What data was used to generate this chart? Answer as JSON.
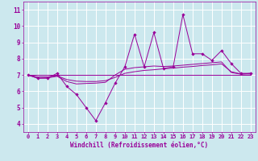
{
  "xlabel": "Windchill (Refroidissement éolien,°C)",
  "ylabel": "",
  "bg_color": "#cce8ee",
  "grid_color": "#ffffff",
  "line_color": "#990099",
  "xlim": [
    -0.5,
    23.5
  ],
  "ylim": [
    3.5,
    11.5
  ],
  "yticks": [
    4,
    5,
    6,
    7,
    8,
    9,
    10,
    11
  ],
  "xticks": [
    0,
    1,
    2,
    3,
    4,
    5,
    6,
    7,
    8,
    9,
    10,
    11,
    12,
    13,
    14,
    15,
    16,
    17,
    18,
    19,
    20,
    21,
    22,
    23
  ],
  "series1_x": [
    0,
    1,
    2,
    3,
    4,
    5,
    6,
    7,
    8,
    9,
    10,
    11,
    12,
    13,
    14,
    15,
    16,
    17,
    18,
    19,
    20,
    21,
    22,
    23
  ],
  "series1_y": [
    7.0,
    6.8,
    6.8,
    7.1,
    6.3,
    5.8,
    5.0,
    4.2,
    5.3,
    6.5,
    7.5,
    9.5,
    7.5,
    9.6,
    7.4,
    7.5,
    10.7,
    8.3,
    8.3,
    7.9,
    8.5,
    7.7,
    7.1,
    7.1
  ],
  "series2_x": [
    0,
    1,
    2,
    3,
    4,
    5,
    6,
    7,
    8,
    9,
    10,
    11,
    12,
    13,
    14,
    15,
    16,
    17,
    18,
    19,
    20,
    21,
    22,
    23
  ],
  "series2_y": [
    7.0,
    6.8,
    6.82,
    6.92,
    6.6,
    6.45,
    6.48,
    6.5,
    6.55,
    7.0,
    7.35,
    7.45,
    7.5,
    7.55,
    7.52,
    7.55,
    7.6,
    7.65,
    7.7,
    7.75,
    7.8,
    7.15,
    7.05,
    7.1
  ],
  "series3_x": [
    0,
    1,
    2,
    3,
    4,
    5,
    6,
    7,
    8,
    9,
    10,
    11,
    12,
    13,
    14,
    15,
    16,
    17,
    18,
    19,
    20,
    21,
    22,
    23
  ],
  "series3_y": [
    7.0,
    6.88,
    6.88,
    6.95,
    6.72,
    6.62,
    6.6,
    6.6,
    6.65,
    6.85,
    7.1,
    7.2,
    7.28,
    7.32,
    7.38,
    7.42,
    7.48,
    7.52,
    7.58,
    7.62,
    7.68,
    7.2,
    7.06,
    7.06
  ],
  "series4_x": [
    0,
    23
  ],
  "series4_y": [
    7.0,
    7.0
  ]
}
